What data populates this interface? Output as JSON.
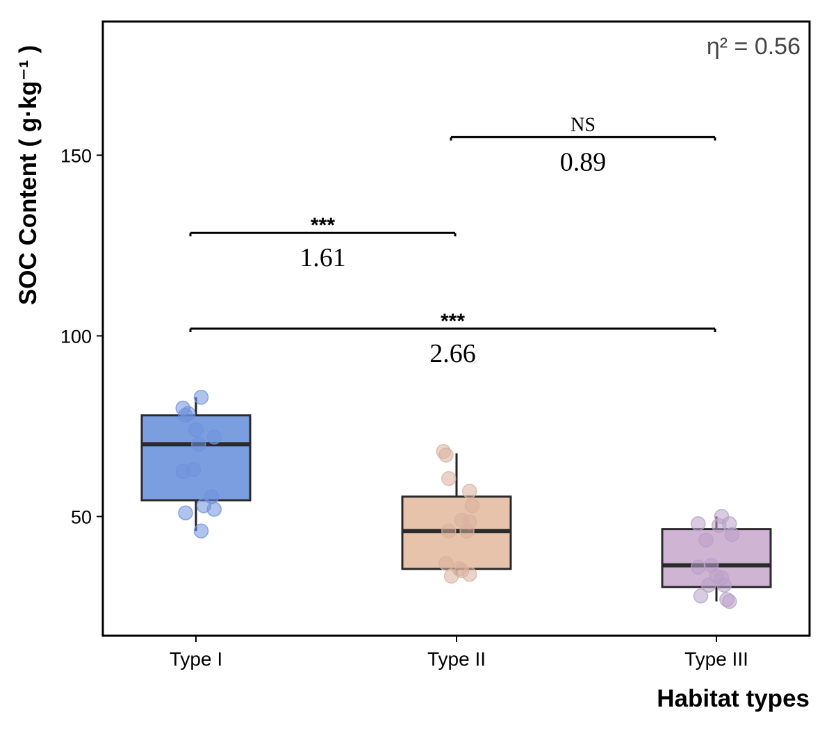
{
  "chart_data": {
    "type": "box",
    "xlabel": "Habitat types",
    "ylabel": "SOC Content ( g·kg⁻¹ )",
    "ylim": [
      17,
      187
    ],
    "yticks": [
      50,
      100,
      150
    ],
    "grid": false,
    "annotation": "η² = 0.56",
    "categories": [
      "Type I",
      "Type II",
      "Type III"
    ],
    "colors": [
      "#7a9ee0",
      "#e6c3aa",
      "#d0b4d4"
    ],
    "point_colors": [
      "#6f92dc",
      "#d9b19f",
      "#b9a0c8"
    ],
    "boxes": [
      {
        "category": "Type I",
        "whisker_low": 46,
        "q1": 54.5,
        "median": 70,
        "q3": 78,
        "whisker_high": 83
      },
      {
        "category": "Type II",
        "whisker_low": 34,
        "q1": 35.5,
        "median": 46,
        "q3": 55.5,
        "whisker_high": 67.5
      },
      {
        "category": "Type III",
        "whisker_low": 26.5,
        "q1": 30.5,
        "median": 36.5,
        "q3": 46.5,
        "whisker_high": 50
      }
    ],
    "points": [
      {
        "category": "Type I",
        "values": [
          {
            "dx": 0.02,
            "y": 83
          },
          {
            "dx": -0.05,
            "y": 80
          },
          {
            "dx": -0.04,
            "y": 78
          },
          {
            "dx": -0.03,
            "y": 78.5
          },
          {
            "dx": 0.0,
            "y": 74
          },
          {
            "dx": 0.07,
            "y": 72
          },
          {
            "dx": 0.01,
            "y": 70
          },
          {
            "dx": -0.05,
            "y": 62.5
          },
          {
            "dx": -0.01,
            "y": 63
          },
          {
            "dx": 0.06,
            "y": 55.5
          },
          {
            "dx": 0.03,
            "y": 53
          },
          {
            "dx": 0.07,
            "y": 52
          },
          {
            "dx": -0.04,
            "y": 51
          },
          {
            "dx": 0.02,
            "y": 46
          }
        ]
      },
      {
        "category": "Type II",
        "values": [
          {
            "dx": -0.05,
            "y": 68
          },
          {
            "dx": -0.04,
            "y": 67
          },
          {
            "dx": -0.03,
            "y": 60.5
          },
          {
            "dx": 0.05,
            "y": 57
          },
          {
            "dx": 0.06,
            "y": 53
          },
          {
            "dx": 0.02,
            "y": 49
          },
          {
            "dx": 0.05,
            "y": 48.5
          },
          {
            "dx": -0.03,
            "y": 46
          },
          {
            "dx": 0.04,
            "y": 46
          },
          {
            "dx": -0.04,
            "y": 37
          },
          {
            "dx": 0.02,
            "y": 35
          },
          {
            "dx": 0.05,
            "y": 34
          },
          {
            "dx": -0.02,
            "y": 33.5
          },
          {
            "dx": 0.01,
            "y": 35.5
          }
        ]
      },
      {
        "category": "Type III",
        "values": [
          {
            "dx": 0.02,
            "y": 50
          },
          {
            "dx": -0.07,
            "y": 48
          },
          {
            "dx": 0.05,
            "y": 48
          },
          {
            "dx": 0.01,
            "y": 47.5
          },
          {
            "dx": 0.06,
            "y": 45
          },
          {
            "dx": -0.04,
            "y": 43.5
          },
          {
            "dx": -0.07,
            "y": 36
          },
          {
            "dx": -0.02,
            "y": 36.5
          },
          {
            "dx": 0.0,
            "y": 33.5
          },
          {
            "dx": 0.02,
            "y": 33
          },
          {
            "dx": -0.03,
            "y": 31
          },
          {
            "dx": 0.03,
            "y": 31
          },
          {
            "dx": -0.06,
            "y": 28
          },
          {
            "dx": 0.04,
            "y": 27
          },
          {
            "dx": 0.05,
            "y": 26.5
          }
        ]
      }
    ],
    "comparisons": [
      {
        "from": "Type I",
        "to": "Type III",
        "y": 102,
        "stars": "***",
        "label": "2.66"
      },
      {
        "from": "Type I",
        "to": "Type II",
        "y": 128.5,
        "stars": "***",
        "label": "1.61"
      },
      {
        "from": "Type II",
        "to": "Type III",
        "y": 155,
        "stars": "NS",
        "label": "0.89"
      }
    ]
  }
}
